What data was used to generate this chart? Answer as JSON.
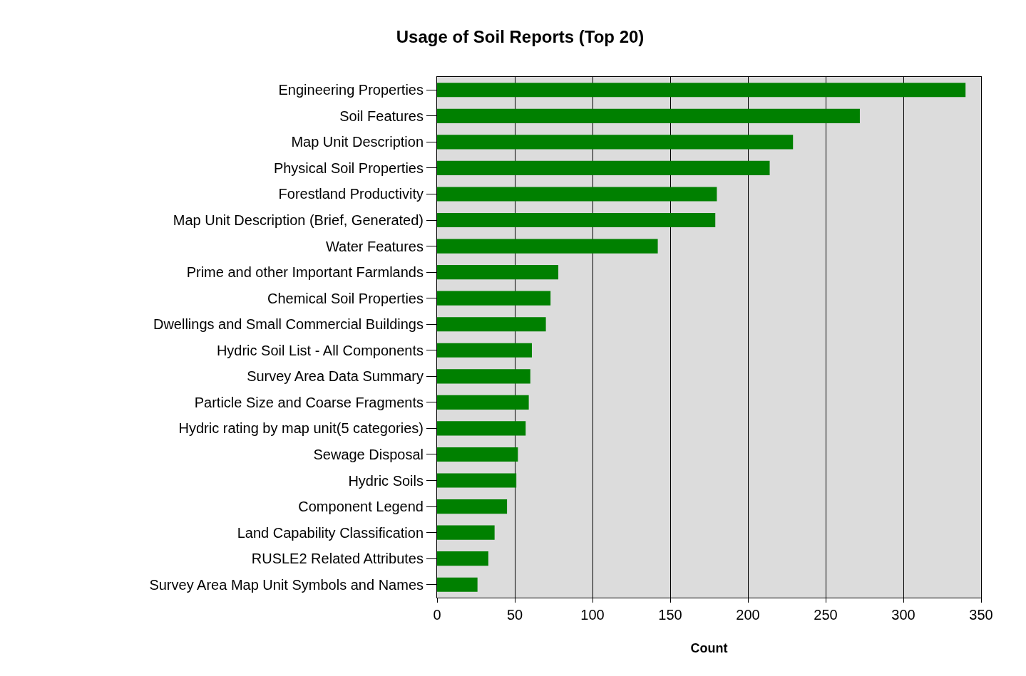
{
  "chart_data": {
    "type": "bar",
    "orientation": "horizontal",
    "title": "Usage of Soil Reports (Top 20)",
    "xlabel": "Count",
    "categories": [
      "Engineering Properties",
      "Soil Features",
      "Map Unit Description",
      "Physical Soil Properties",
      "Forestland Productivity",
      "Map Unit Description (Brief, Generated)",
      "Water Features",
      "Prime and other Important Farmlands",
      "Chemical Soil Properties",
      "Dwellings and Small Commercial Buildings",
      "Hydric Soil List - All Components",
      "Survey Area Data Summary",
      "Particle Size and Coarse Fragments",
      "Hydric rating by map unit(5 categories)",
      "Sewage Disposal",
      "Hydric Soils",
      "Component Legend",
      "Land Capability Classification",
      "RUSLE2 Related Attributes",
      "Survey Area Map Unit Symbols and Names"
    ],
    "values": [
      340,
      272,
      229,
      214,
      180,
      179,
      142,
      78,
      73,
      70,
      61,
      60,
      59,
      57,
      52,
      51,
      45,
      37,
      33,
      26
    ],
    "color": "#008000",
    "xlim": [
      0,
      350
    ],
    "xticks": [
      0,
      50,
      100,
      150,
      200,
      250,
      300,
      350
    ],
    "grid": "x",
    "legend": false
  }
}
